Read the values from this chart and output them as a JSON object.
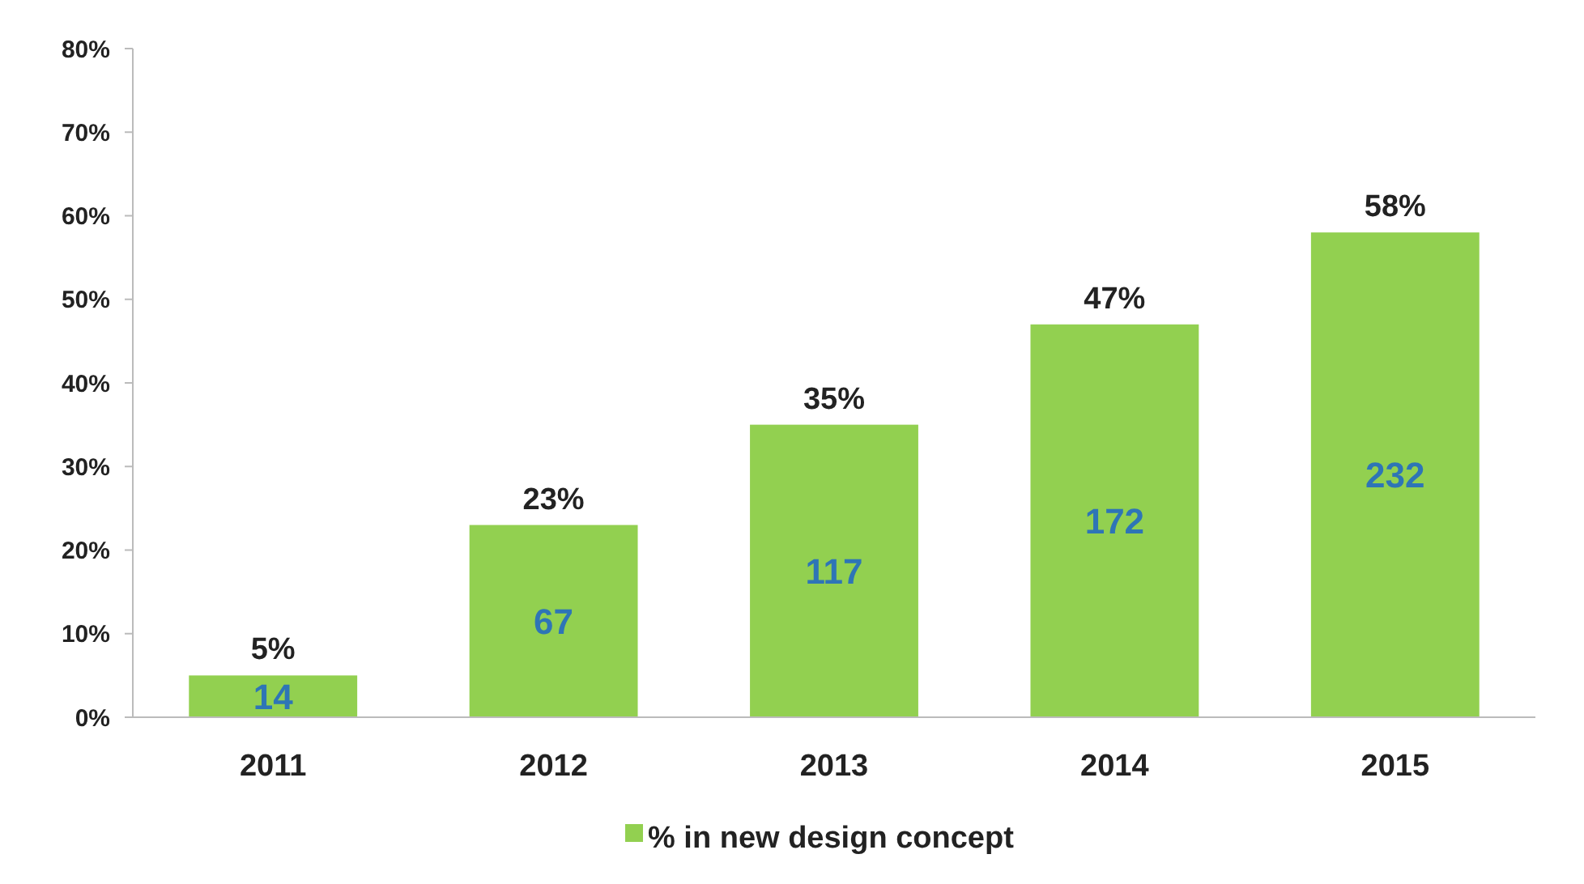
{
  "chart_data": {
    "type": "bar",
    "categories": [
      "2011",
      "2012",
      "2013",
      "2014",
      "2015"
    ],
    "series": [
      {
        "name": "% in new design concept",
        "color": "#92d050",
        "values": [
          5,
          23,
          35,
          47,
          58
        ],
        "value_labels": [
          "5%",
          "23%",
          "35%",
          "47%",
          "58%"
        ]
      }
    ],
    "ylim": [
      0,
      80
    ],
    "yticks": [
      {
        "value": 0,
        "label": "0%"
      },
      {
        "value": 10,
        "label": "10%"
      },
      {
        "value": 20,
        "label": "20%"
      },
      {
        "value": 30,
        "label": "30%"
      },
      {
        "value": 40,
        "label": "40%"
      },
      {
        "value": 50,
        "label": "50%"
      },
      {
        "value": 60,
        "label": "60%"
      },
      {
        "value": 70,
        "label": "70%"
      },
      {
        "value": 80,
        "label": "80%"
      }
    ],
    "annotations": [
      "14",
      "67",
      "117",
      "172",
      "232"
    ],
    "grid": false,
    "legend": "bottom"
  }
}
